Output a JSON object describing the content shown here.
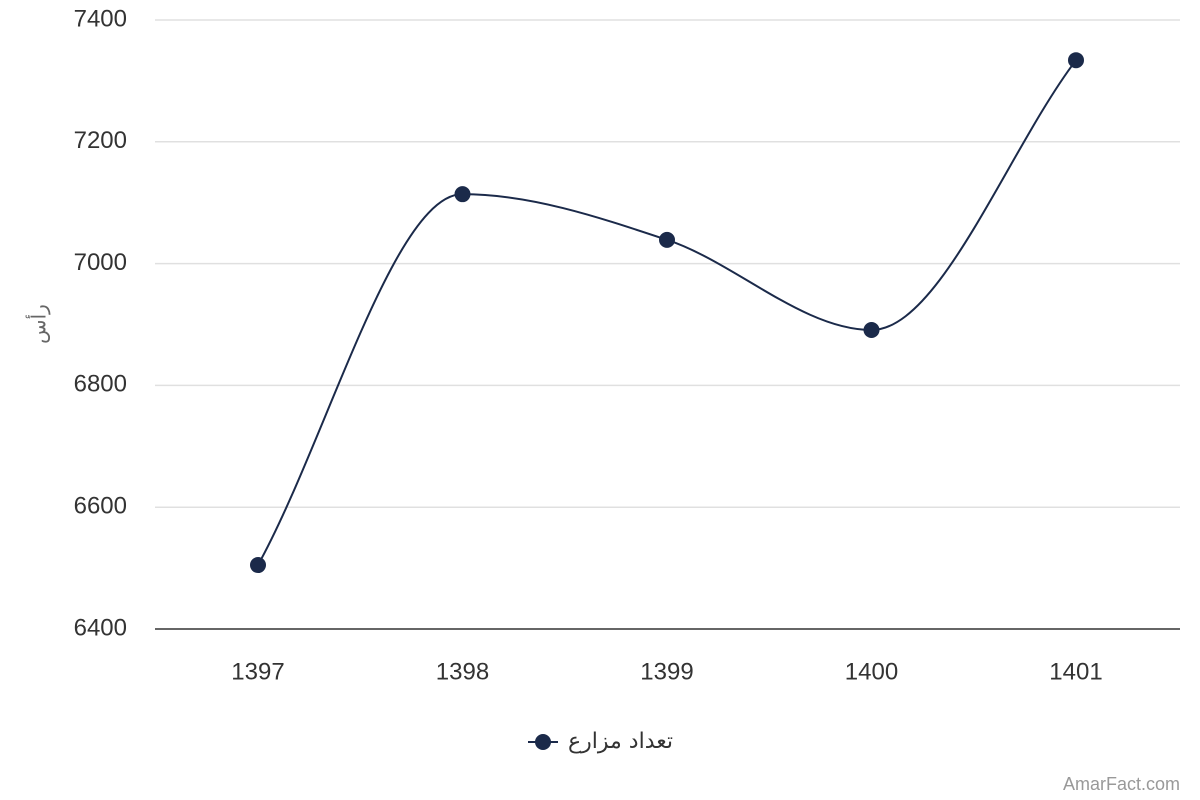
{
  "chart_data": {
    "type": "line",
    "smooth": true,
    "x": [
      "1397",
      "1398",
      "1399",
      "1400",
      "1401"
    ],
    "series": [
      {
        "name": "تعداد مزارع",
        "values": [
          6505,
          7114,
          7039,
          6891,
          7334
        ],
        "color": "#1b2a4a"
      }
    ],
    "ylabel": "رأس",
    "ylim": [
      6400,
      7400
    ],
    "yticks": [
      6400,
      6600,
      6800,
      7000,
      7200,
      7400
    ],
    "grid": true,
    "legend": "bottom-center"
  },
  "credits": "AmarFact.com"
}
